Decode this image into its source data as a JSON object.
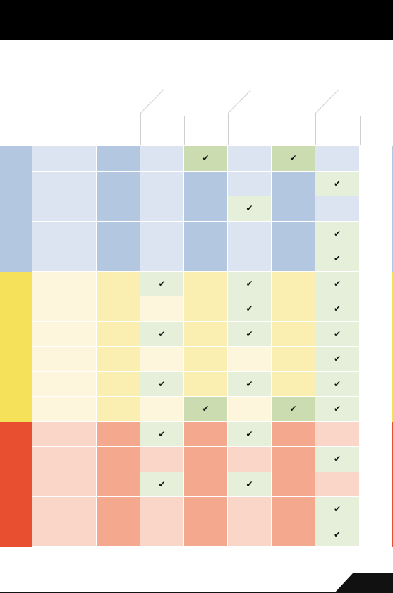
{
  "colors": {
    "topbar": "#000000",
    "blue_band": "#b4c7e1",
    "yellow_band": "#f5e15a",
    "red_band": "#e84e30",
    "check_light": "#e5efd9",
    "check_dark": "#cbddb0"
  },
  "columns": 8,
  "check_glyph": "✔",
  "groups": [
    {
      "name": "blue-group",
      "band": "#b4c7e1",
      "rows": [
        {
          "fills": [
            "#dce4f2",
            "#b4c7e1",
            "#dce4f2",
            "#cbddb0",
            "#dce4f2",
            "#cbddb0",
            "#dce4f2"
          ],
          "checks": [
            false,
            false,
            false,
            true,
            false,
            true,
            false
          ]
        },
        {
          "fills": [
            "#dce4f2",
            "#b4c7e1",
            "#dce4f2",
            "#b4c7e1",
            "#dce4f2",
            "#b4c7e1",
            "#e5efd9"
          ],
          "checks": [
            false,
            false,
            false,
            false,
            false,
            false,
            true
          ]
        },
        {
          "fills": [
            "#dce4f2",
            "#b4c7e1",
            "#dce4f2",
            "#b4c7e1",
            "#e5efd9",
            "#b4c7e1",
            "#dce4f2"
          ],
          "checks": [
            false,
            false,
            false,
            false,
            true,
            false,
            false
          ]
        },
        {
          "fills": [
            "#dce4f2",
            "#b4c7e1",
            "#dce4f2",
            "#b4c7e1",
            "#dce4f2",
            "#b4c7e1",
            "#e5efd9"
          ],
          "checks": [
            false,
            false,
            false,
            false,
            false,
            false,
            true
          ]
        },
        {
          "fills": [
            "#dce4f2",
            "#b4c7e1",
            "#dce4f2",
            "#b4c7e1",
            "#dce4f2",
            "#b4c7e1",
            "#e5efd9"
          ],
          "checks": [
            false,
            false,
            false,
            false,
            false,
            false,
            true
          ]
        }
      ]
    },
    {
      "name": "yellow-group",
      "band": "#f5e15a",
      "rows": [
        {
          "fills": [
            "#fdf6dc",
            "#faefb0",
            "#e5efd9",
            "#faefb0",
            "#e5efd9",
            "#faefb0",
            "#e5efd9"
          ],
          "checks": [
            false,
            false,
            true,
            false,
            true,
            false,
            true
          ]
        },
        {
          "fills": [
            "#fdf6dc",
            "#faefb0",
            "#fdf6dc",
            "#faefb0",
            "#e5efd9",
            "#faefb0",
            "#e5efd9"
          ],
          "checks": [
            false,
            false,
            false,
            false,
            true,
            false,
            true
          ]
        },
        {
          "fills": [
            "#fdf6dc",
            "#faefb0",
            "#e5efd9",
            "#faefb0",
            "#e5efd9",
            "#faefb0",
            "#e5efd9"
          ],
          "checks": [
            false,
            false,
            true,
            false,
            true,
            false,
            true
          ]
        },
        {
          "fills": [
            "#fdf6dc",
            "#faefb0",
            "#fdf6dc",
            "#faefb0",
            "#fdf6dc",
            "#faefb0",
            "#e5efd9"
          ],
          "checks": [
            false,
            false,
            false,
            false,
            false,
            false,
            true
          ]
        },
        {
          "fills": [
            "#fdf6dc",
            "#faefb0",
            "#e5efd9",
            "#faefb0",
            "#e5efd9",
            "#faefb0",
            "#e5efd9"
          ],
          "checks": [
            false,
            false,
            true,
            false,
            true,
            false,
            true
          ]
        },
        {
          "fills": [
            "#fdf6dc",
            "#faefb0",
            "#fdf6dc",
            "#cbddb0",
            "#fdf6dc",
            "#cbddb0",
            "#e5efd9"
          ],
          "checks": [
            false,
            false,
            false,
            true,
            false,
            true,
            true
          ]
        }
      ]
    },
    {
      "name": "red-group",
      "band": "#e84e30",
      "rows": [
        {
          "fills": [
            "#f9d6c8",
            "#f4a98f",
            "#e5efd9",
            "#f4a98f",
            "#e5efd9",
            "#f4a98f",
            "#f9d6c8"
          ],
          "checks": [
            false,
            false,
            true,
            false,
            true,
            false,
            false
          ]
        },
        {
          "fills": [
            "#f9d6c8",
            "#f4a98f",
            "#f9d6c8",
            "#f4a98f",
            "#f9d6c8",
            "#f4a98f",
            "#e5efd9"
          ],
          "checks": [
            false,
            false,
            false,
            false,
            false,
            false,
            true
          ]
        },
        {
          "fills": [
            "#f9d6c8",
            "#f4a98f",
            "#e5efd9",
            "#f4a98f",
            "#e5efd9",
            "#f4a98f",
            "#f9d6c8"
          ],
          "checks": [
            false,
            false,
            true,
            false,
            true,
            false,
            false
          ]
        },
        {
          "fills": [
            "#f9d6c8",
            "#f4a98f",
            "#f9d6c8",
            "#f4a98f",
            "#f9d6c8",
            "#f4a98f",
            "#e5efd9"
          ],
          "checks": [
            false,
            false,
            false,
            false,
            false,
            false,
            true
          ]
        },
        {
          "fills": [
            "#f9d6c8",
            "#f4a98f",
            "#f9d6c8",
            "#f4a98f",
            "#f9d6c8",
            "#f4a98f",
            "#e5efd9"
          ],
          "checks": [
            false,
            false,
            false,
            false,
            false,
            false,
            true
          ]
        }
      ]
    }
  ]
}
